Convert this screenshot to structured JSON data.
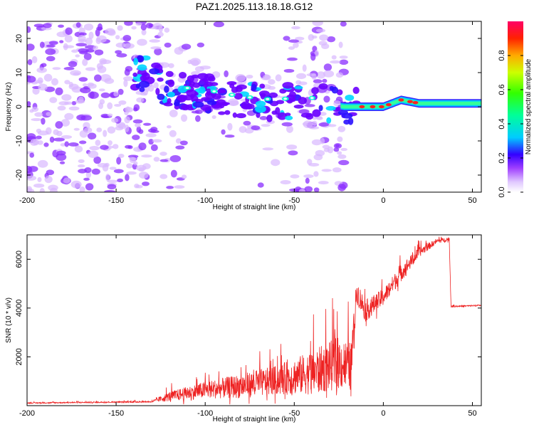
{
  "title": "PAZ1.2025.113.18.18.G12",
  "colors": {
    "line": "#ee2222",
    "spectrogram_low": "#cc99ff",
    "spectrogram_mid": "#7a00ff",
    "spectrogram_high_cyan": "#00ffff",
    "spectrogram_peak": "#ff2222"
  },
  "chart_data": [
    {
      "type": "heatmap",
      "name": "spectrogram",
      "xlabel": "Height of straight line (km)",
      "ylabel": "Frequency (Hz)",
      "xlim": [
        -200,
        55
      ],
      "ylim": [
        -25,
        25
      ],
      "xticks": [
        -200,
        -150,
        -100,
        -50,
        0,
        50
      ],
      "yticks": [
        -20,
        -10,
        0,
        10,
        20
      ],
      "colorbar": {
        "label": "Normalized spectral amplitude",
        "range": [
          0,
          1
        ],
        "ticks": [
          "0.0",
          "0.2",
          "0.4",
          "0.6",
          "0.8"
        ]
      },
      "ridge": [
        {
          "x": -135,
          "y": 10
        },
        {
          "x": -120,
          "y": 5
        },
        {
          "x": -100,
          "y": 4
        },
        {
          "x": -80,
          "y": 2
        },
        {
          "x": -60,
          "y": 1
        },
        {
          "x": -45,
          "y": 2
        },
        {
          "x": -22,
          "y": 0
        },
        {
          "x": -15,
          "y": 0
        },
        {
          "x": 0,
          "y": 0
        },
        {
          "x": 10,
          "y": 2
        },
        {
          "x": 20,
          "y": 1
        },
        {
          "x": 55,
          "y": 1
        }
      ]
    },
    {
      "type": "line",
      "name": "snr",
      "xlabel": "Height of straight line (km)",
      "ylabel": "SNR (10 * v/v)",
      "xlim": [
        -200,
        55
      ],
      "ylim": [
        0,
        7000
      ],
      "xticks": [
        -200,
        -150,
        -100,
        -50,
        0,
        50
      ],
      "yticks": [
        2000,
        4000,
        6000
      ],
      "envelope": [
        {
          "x": -200,
          "base": 100,
          "amp": 40
        },
        {
          "x": -130,
          "base": 150,
          "amp": 60
        },
        {
          "x": -120,
          "base": 300,
          "amp": 400
        },
        {
          "x": -100,
          "base": 500,
          "amp": 700
        },
        {
          "x": -80,
          "base": 600,
          "amp": 1000
        },
        {
          "x": -60,
          "base": 800,
          "amp": 1200
        },
        {
          "x": -40,
          "base": 1000,
          "amp": 1800
        },
        {
          "x": -25,
          "base": 1300,
          "amp": 2200
        },
        {
          "x": -18,
          "base": 1200,
          "amp": 2000
        },
        {
          "x": -15,
          "base": 4500,
          "amp": 1000
        },
        {
          "x": -10,
          "base": 3700,
          "amp": 900
        },
        {
          "x": 0,
          "base": 4300,
          "amp": 700
        },
        {
          "x": 10,
          "base": 5300,
          "amp": 700
        },
        {
          "x": 20,
          "base": 6200,
          "amp": 400
        },
        {
          "x": 30,
          "base": 6700,
          "amp": 200
        },
        {
          "x": 37,
          "base": 6800,
          "amp": 150
        },
        {
          "x": 38,
          "base": 4050,
          "amp": 60
        },
        {
          "x": 55,
          "base": 4100,
          "amp": 50
        }
      ]
    }
  ]
}
